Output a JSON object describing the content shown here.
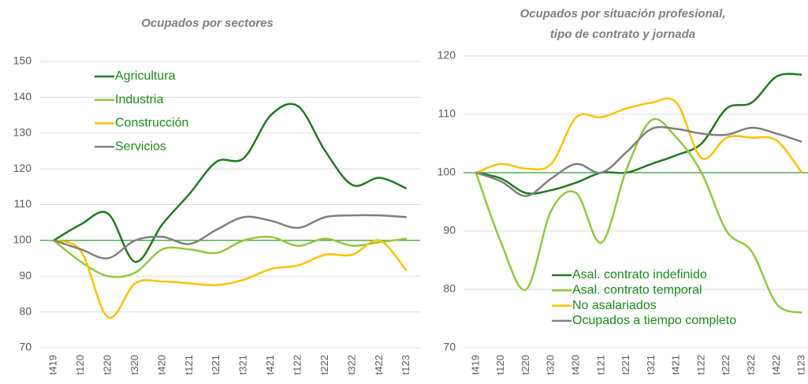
{
  "chart_data": [
    {
      "type": "line",
      "title": [
        "Ocupados por sectores"
      ],
      "categories": [
        "t419",
        "t120",
        "t220",
        "t320",
        "t420",
        "t121",
        "t221",
        "t321",
        "t421",
        "t122",
        "t222",
        "t322",
        "t422",
        "t123"
      ],
      "series": [
        {
          "name": "Agricultura",
          "color": "#1e7b1e",
          "values": [
            100,
            104.5,
            107.5,
            94,
            104.5,
            113,
            122,
            123,
            135,
            137.5,
            125,
            115.5,
            117.5,
            114.5
          ]
        },
        {
          "name": "Industria",
          "color": "#92c83e",
          "values": [
            100,
            94,
            90,
            91,
            97.5,
            97.5,
            96.5,
            100,
            101,
            98.5,
            100.5,
            98.5,
            99.5,
            100.5
          ]
        },
        {
          "name": "Construcción",
          "color": "#ffc000",
          "values": [
            100,
            97,
            78.5,
            88,
            88.5,
            88,
            87.5,
            89,
            92,
            93,
            96,
            96,
            100,
            91.5
          ]
        },
        {
          "name": "Servicios",
          "color": "#7f7f7f",
          "values": [
            100,
            97.5,
            95,
            100,
            101,
            99,
            103,
            106.5,
            105.5,
            103.5,
            106.5,
            107,
            107,
            106.5
          ]
        }
      ],
      "ylim": [
        70,
        150
      ],
      "yticks": [
        70,
        80,
        90,
        100,
        110,
        120,
        130,
        140,
        150
      ],
      "grid": true,
      "reference_line": 100,
      "reference_color": "#2e9e2e"
    },
    {
      "type": "line",
      "title": [
        "Ocupados por situación profesional,",
        "tipo de contrato y jornada"
      ],
      "categories": [
        "t419",
        "t120",
        "t220",
        "t320",
        "t420",
        "t121",
        "t221",
        "t321",
        "t421",
        "t122",
        "t222",
        "t322",
        "t422",
        "t123"
      ],
      "series": [
        {
          "name": "Asal. contrato indefinido",
          "color": "#1e7b1e",
          "values": [
            100,
            99,
            96.5,
            97,
            98.3,
            100,
            100,
            101.5,
            103,
            105,
            111,
            112,
            116.5,
            116.8
          ]
        },
        {
          "name": "Asal. contrato temporal",
          "color": "#92c83e",
          "values": [
            100,
            88,
            80,
            93.5,
            96.5,
            88,
            100.5,
            109,
            106,
            100,
            90,
            86.5,
            77.5,
            76
          ]
        },
        {
          "name": "No asalariados",
          "color": "#ffc000",
          "values": [
            100,
            101.5,
            100.7,
            101.5,
            109.5,
            109.5,
            111,
            112,
            112,
            102.5,
            106,
            106,
            105.5,
            100
          ]
        },
        {
          "name": "Ocupados a tiempo completo",
          "color": "#7f7f7f",
          "values": [
            100,
            98.5,
            96,
            99,
            101.5,
            100,
            103.5,
            107.5,
            107.5,
            106.7,
            106.5,
            107.7,
            106.7,
            105.3
          ]
        }
      ],
      "ylim": [
        70,
        120
      ],
      "yticks": [
        70,
        80,
        90,
        100,
        110,
        120
      ],
      "grid": true,
      "reference_line": 100,
      "reference_color": "#2e9e2e"
    }
  ]
}
